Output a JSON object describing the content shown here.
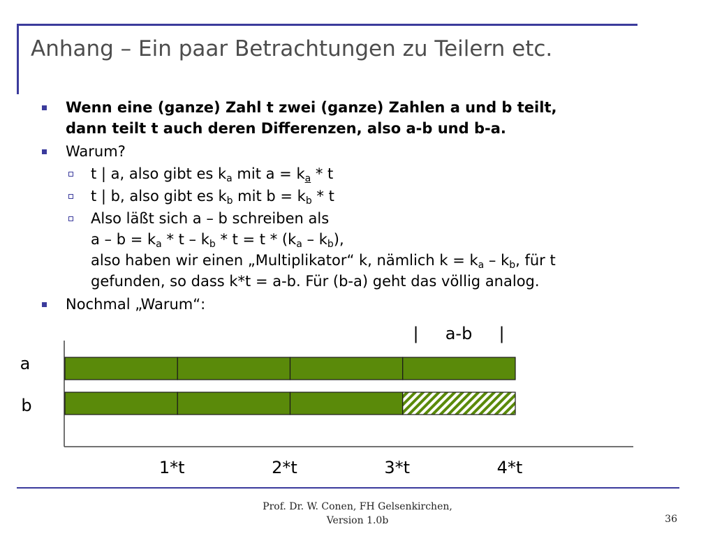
{
  "slide": {
    "title": "Anhang – Ein paar Betrachtungen zu Teilern etc.",
    "bullets": [
      {
        "lines": [
          "Wenn eine (ganze) Zahl t zwei (ganze) Zahlen a und b teilt,",
          "dann teilt t auch deren Differenzen, also a-b und b-a."
        ]
      },
      {
        "text": "Warum?"
      }
    ],
    "sub_bullets": {
      "s1": {
        "pre": "t | a, also gibt es k",
        "sub1": "a",
        "mid": " mit a = k",
        "sub2": "a",
        "post": " * t"
      },
      "s2": {
        "pre": "t | b, also gibt es k",
        "sub1": "b",
        "mid": " mit b = k",
        "sub2": "b",
        "post": " * t"
      },
      "s3": {
        "line1": "Also läßt sich a – b schreiben als",
        "line2": {
          "p1": "a – b = k",
          "s1": "a",
          "p2": " * t – k",
          "s2": "b",
          "p3": " * t = t * (k",
          "s3": "a",
          "p4": " – k",
          "s4": "b",
          "p5": "),"
        },
        "line3": {
          "p1": "also haben wir einen „Multiplikator“ k, nämlich k = k",
          "s1": "a",
          "p2": " – k",
          "s2": "b",
          "p3": ", für t"
        },
        "line4": "gefunden, so dass k*t = a-b. Für (b-a) geht das völlig analog."
      }
    },
    "bullet3": "Nochmal „Warum“:"
  },
  "diagram": {
    "row_labels": [
      "a",
      "b"
    ],
    "a_segments": 4,
    "b_segments": 3,
    "difference_segments": 1,
    "difference_label": "|     a-b     |",
    "x_labels": [
      "1*t",
      "2*t",
      "3*t",
      "4*t"
    ],
    "colors": {
      "solid": "#5a8a0a",
      "outline": "#1a1a1a",
      "hatch_bg": "#ffffff"
    }
  },
  "footer": {
    "line1": "Prof. Dr. W. Conen, FH Gelsenkirchen,",
    "line2": "Version 1.0b",
    "page": "36"
  }
}
